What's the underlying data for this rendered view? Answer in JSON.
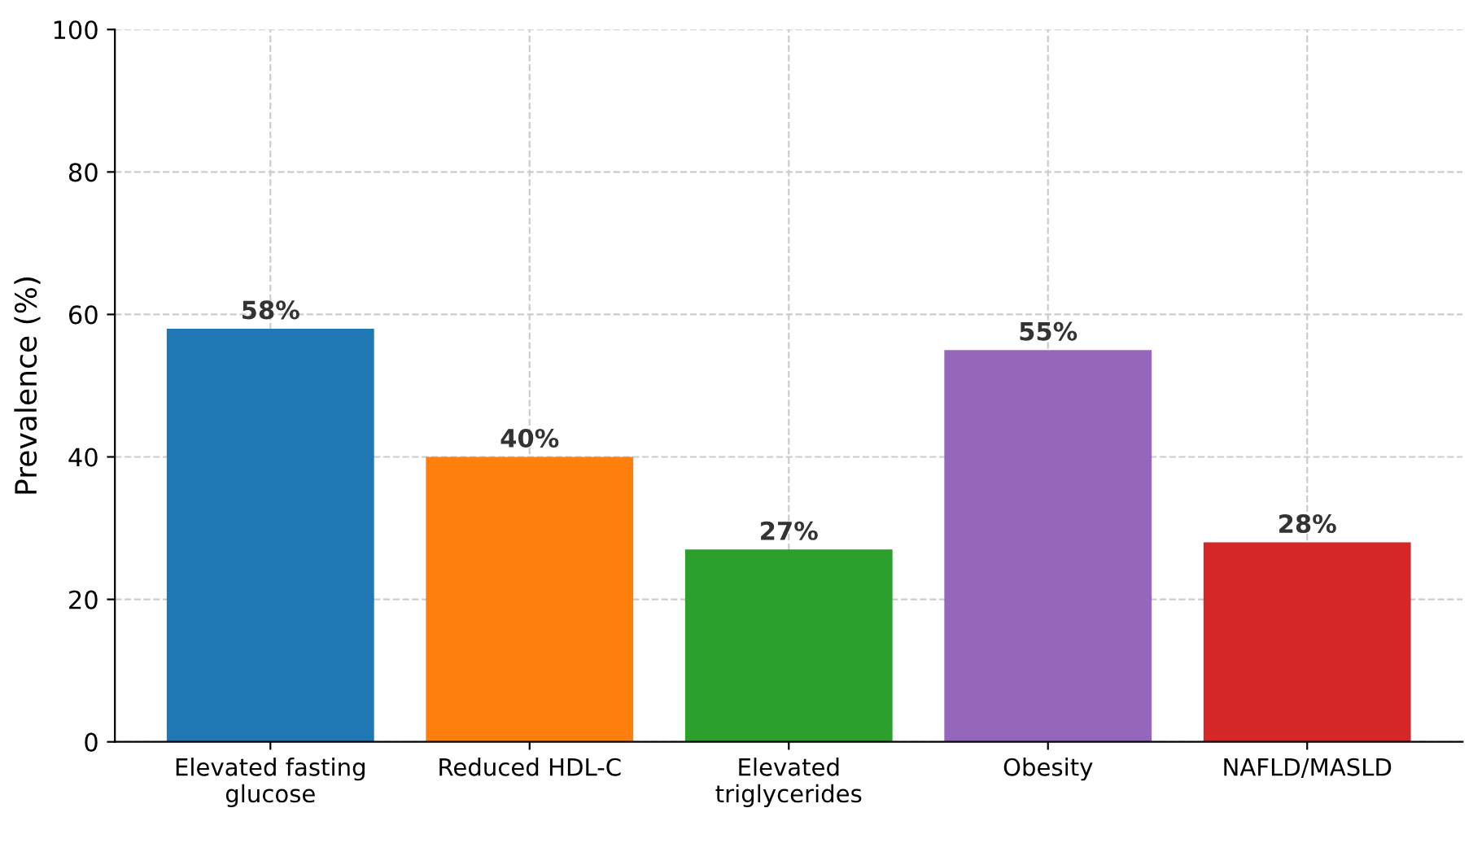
{
  "chart_data": {
    "type": "bar",
    "ylabel": "Prevalence (%)",
    "categories": [
      "Elevated fasting\nglucose",
      "Reduced HDL-C",
      "Elevated\ntriglycerides",
      "Obesity",
      "NAFLD/MASLD"
    ],
    "values": [
      58,
      40,
      27,
      55,
      28
    ],
    "colors": [
      "#1f77b4",
      "#ff7f0e",
      "#2ca02c",
      "#9467bd",
      "#d62728"
    ],
    "value_labels": [
      "58%",
      "40%",
      "27%",
      "55%",
      "28%"
    ],
    "ylim": [
      0,
      100
    ],
    "yticks": [
      0,
      20,
      40,
      60,
      80,
      100
    ],
    "grid": true
  }
}
